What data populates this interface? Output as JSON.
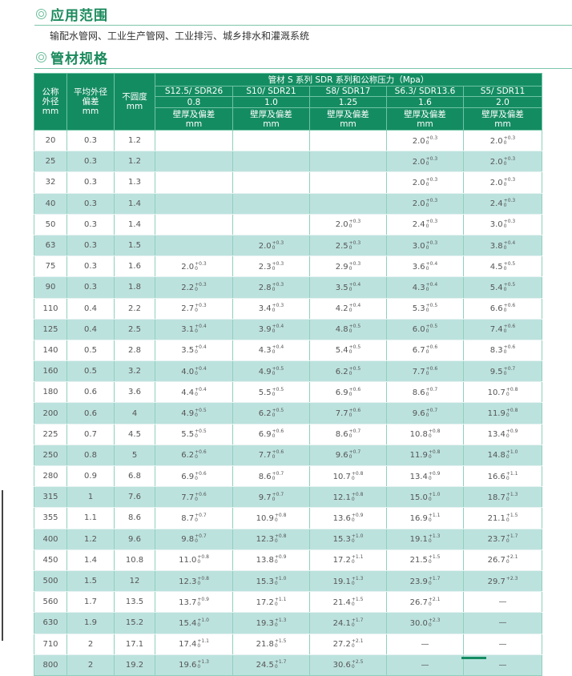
{
  "section1": {
    "icon": "double-circle-icon",
    "title": "应用范围",
    "text": "输配水管网、工业生产管网、工业排污、城乡排水和灌溉系统"
  },
  "section2": {
    "icon": "double-circle-icon",
    "title": "管材规格"
  },
  "colors": {
    "header_bg": "#148c62",
    "stripe": "#bce2de",
    "title": "#1a8a5c"
  },
  "table": {
    "h_od": [
      "公称",
      "外径",
      "mm"
    ],
    "h_dev": [
      "平均外径",
      "偏差",
      "mm"
    ],
    "h_ovality": [
      "不圆度",
      "mm"
    ],
    "h_group": "管材 S 系列 SDR 系列和公称压力（Mpa）",
    "series": [
      {
        "name": "S12.5/ SDR26",
        "pressure": "0.8",
        "sub": "壁厚及偏差",
        "unit": "mm"
      },
      {
        "name": "S10/ SDR21",
        "pressure": "1.0",
        "sub": "壁厚及偏差",
        "unit": "mm"
      },
      {
        "name": "S8/ SDR17",
        "pressure": "1.25",
        "sub": "壁厚及偏差",
        "unit": "mm"
      },
      {
        "name": "S6.3/ SDR13.6",
        "pressure": "1.6",
        "sub": "壁厚及偏差",
        "unit": "mm"
      },
      {
        "name": "S5/ SDR11",
        "pressure": "2.0",
        "sub": "壁厚及偏差",
        "unit": "mm"
      }
    ],
    "rows": [
      {
        "od": "20",
        "dev": "0.3",
        "ov": "1.2",
        "cells": [
          [],
          [],
          [],
          [
            "2.0",
            "+0.3",
            "0"
          ],
          [
            "2.0",
            "+0.3",
            "0"
          ]
        ]
      },
      {
        "od": "25",
        "dev": "0.3",
        "ov": "1.2",
        "cells": [
          [],
          [],
          [],
          [
            "2.0",
            "+0.3",
            "0"
          ],
          [
            "2.0",
            "+0.3",
            "0"
          ]
        ]
      },
      {
        "od": "32",
        "dev": "0.3",
        "ov": "1.3",
        "cells": [
          [],
          [],
          [],
          [
            "2.0",
            "+0.3",
            "0"
          ],
          [
            "2.0",
            "+0.3",
            "0"
          ]
        ]
      },
      {
        "od": "40",
        "dev": "0.3",
        "ov": "1.4",
        "cells": [
          [],
          [],
          [],
          [
            "2.0",
            "+0.3",
            "0"
          ],
          [
            "2.4",
            "+0.3",
            "0"
          ]
        ]
      },
      {
        "od": "50",
        "dev": "0.3",
        "ov": "1.4",
        "cells": [
          [],
          [],
          [
            "2.0",
            "+0.3",
            "0"
          ],
          [
            "2.4",
            "+0.3",
            "0"
          ],
          [
            "3.0",
            "+0.3",
            "0"
          ]
        ]
      },
      {
        "od": "63",
        "dev": "0.3",
        "ov": "1.5",
        "cells": [
          [],
          [
            "2.0",
            "+0.3",
            "0"
          ],
          [
            "2.5",
            "+0.3",
            "0"
          ],
          [
            "3.0",
            "+0.3",
            "0"
          ],
          [
            "3.8",
            "+0.4",
            "0"
          ]
        ]
      },
      {
        "od": "75",
        "dev": "0.3",
        "ov": "1.6",
        "cells": [
          [
            "2.0",
            "+0.3",
            "0"
          ],
          [
            "2.3",
            "+0.3",
            "0"
          ],
          [
            "2.9",
            "+0.3",
            "0"
          ],
          [
            "3.6",
            "+0.4",
            "0"
          ],
          [
            "4.5",
            "+0.5",
            "0"
          ]
        ]
      },
      {
        "od": "90",
        "dev": "0.3",
        "ov": "1.8",
        "cells": [
          [
            "2.2",
            "+0.3",
            "0"
          ],
          [
            "2.8",
            "+0.3",
            "0"
          ],
          [
            "3.5",
            "+0.4",
            "0"
          ],
          [
            "4.3",
            "+0.4",
            "0"
          ],
          [
            "5.4",
            "+0.5",
            "0"
          ]
        ]
      },
      {
        "od": "110",
        "dev": "0.4",
        "ov": "2.2",
        "cells": [
          [
            "2.7",
            "+0.3",
            "0"
          ],
          [
            "3.4",
            "+0.3",
            "0"
          ],
          [
            "4.2",
            "+0.4",
            "0"
          ],
          [
            "5.3",
            "+0.5",
            "0"
          ],
          [
            "6.6",
            "+0.6",
            "0"
          ]
        ]
      },
      {
        "od": "125",
        "dev": "0.4",
        "ov": "2.5",
        "cells": [
          [
            "3.1",
            "+0.4",
            "0"
          ],
          [
            "3.9",
            "+0.4",
            "0"
          ],
          [
            "4.8",
            "+0.5",
            "0"
          ],
          [
            "6.0",
            "+0.5",
            "0"
          ],
          [
            "7.4",
            "+0.6",
            "0"
          ]
        ]
      },
      {
        "od": "140",
        "dev": "0.5",
        "ov": "2.8",
        "cells": [
          [
            "3.5",
            "+0.4",
            "0"
          ],
          [
            "4.3",
            "+0.4",
            "0"
          ],
          [
            "5.4",
            "+0.5",
            "0"
          ],
          [
            "6.7",
            "+0.6",
            "0"
          ],
          [
            "8.3",
            "+0.6",
            "0"
          ]
        ]
      },
      {
        "od": "160",
        "dev": "0.5",
        "ov": "3.2",
        "cells": [
          [
            "4.0",
            "+0.4",
            "0"
          ],
          [
            "4.9",
            "+0.5",
            "0"
          ],
          [
            "6.2",
            "+0.5",
            "0"
          ],
          [
            "7.7",
            "+0.6",
            "0"
          ],
          [
            "9.5",
            "+0.7",
            "0"
          ]
        ]
      },
      {
        "od": "180",
        "dev": "0.6",
        "ov": "3.6",
        "cells": [
          [
            "4.4",
            "+0.4",
            "0"
          ],
          [
            "5.5",
            "+0.5",
            "0"
          ],
          [
            "6.9",
            "+0.6",
            "0"
          ],
          [
            "8.6",
            "+0.7",
            "0"
          ],
          [
            "10.7",
            "+0.8",
            "0"
          ]
        ]
      },
      {
        "od": "200",
        "dev": "0.6",
        "ov": "4",
        "cells": [
          [
            "4.9",
            "+0.5",
            "0"
          ],
          [
            "6.2",
            "+0.5",
            "0"
          ],
          [
            "7.7",
            "+0.6",
            "0"
          ],
          [
            "9.6",
            "+0.7",
            "0"
          ],
          [
            "11.9",
            "+0.8",
            "0"
          ]
        ]
      },
      {
        "od": "225",
        "dev": "0.7",
        "ov": "4.5",
        "cells": [
          [
            "5.5",
            "+0.5",
            "0"
          ],
          [
            "6.9",
            "+0.6",
            "0"
          ],
          [
            "8.6",
            "+0.7",
            "0"
          ],
          [
            "10.8",
            "+0.8",
            "0"
          ],
          [
            "13.4",
            "+0.9",
            "0"
          ]
        ]
      },
      {
        "od": "250",
        "dev": "0.8",
        "ov": "5",
        "cells": [
          [
            "6.2",
            "+0.6",
            "0"
          ],
          [
            "7.7",
            "+0.6",
            "0"
          ],
          [
            "9.6",
            "+0.7",
            "0"
          ],
          [
            "11.9",
            "+0.8",
            "0"
          ],
          [
            "14.8",
            "+1.0",
            "0"
          ]
        ]
      },
      {
        "od": "280",
        "dev": "0.9",
        "ov": "6.8",
        "cells": [
          [
            "6.9",
            "+0.6",
            "0"
          ],
          [
            "8.6",
            "+0.7",
            "0"
          ],
          [
            "10.7",
            "+0.8",
            "0"
          ],
          [
            "13.4",
            "+0.9",
            "0"
          ],
          [
            "16.6",
            "+1.1",
            "0"
          ]
        ]
      },
      {
        "od": "315",
        "dev": "1",
        "ov": "7.6",
        "cells": [
          [
            "7.7",
            "+0.6",
            "0"
          ],
          [
            "9.7",
            "+0.7",
            "0"
          ],
          [
            "12.1",
            "+0.8",
            "0"
          ],
          [
            "15.0",
            "+1.0",
            "0"
          ],
          [
            "18.7",
            "+1.3",
            "0"
          ]
        ]
      },
      {
        "od": "355",
        "dev": "1.1",
        "ov": "8.6",
        "cells": [
          [
            "8.7",
            "+0.7",
            "0"
          ],
          [
            "10.9",
            "+0.8",
            "0"
          ],
          [
            "13.6",
            "+0.9",
            "0"
          ],
          [
            "16.9",
            "+1.1",
            "0"
          ],
          [
            "21.1",
            "+1.5",
            "0"
          ]
        ]
      },
      {
        "od": "400",
        "dev": "1.2",
        "ov": "9.6",
        "cells": [
          [
            "9.8",
            "+0.7",
            "0"
          ],
          [
            "12.3",
            "+0.8",
            "0"
          ],
          [
            "15.3",
            "+1.0",
            "0"
          ],
          [
            "19.1",
            "+1.3",
            "0"
          ],
          [
            "23.7",
            "+1.7",
            "0"
          ]
        ]
      },
      {
        "od": "450",
        "dev": "1.4",
        "ov": "10.8",
        "cells": [
          [
            "11.0",
            "+0.8",
            "0"
          ],
          [
            "13.8",
            "+0.9",
            "0"
          ],
          [
            "17.2",
            "+1.1",
            "0"
          ],
          [
            "21.5",
            "+1.5",
            "0"
          ],
          [
            "26.7",
            "+2.1",
            "0"
          ]
        ]
      },
      {
        "od": "500",
        "dev": "1.5",
        "ov": "12",
        "cells": [
          [
            "12.3",
            "+0.8",
            "0"
          ],
          [
            "15.3",
            "+1.0",
            "0"
          ],
          [
            "19.1",
            "+1.3",
            "0"
          ],
          [
            "23.9",
            "+1.7",
            "0"
          ],
          [
            "29.7",
            "+2.3",
            ""
          ]
        ]
      },
      {
        "od": "560",
        "dev": "1.7",
        "ov": "13.5",
        "cells": [
          [
            "13.7",
            "+0.9",
            "0"
          ],
          [
            "17.2",
            "+1.1",
            "0"
          ],
          [
            "21.4",
            "+1.5",
            "0"
          ],
          [
            "26.7",
            "+2.1",
            "0"
          ],
          [
            "—"
          ]
        ]
      },
      {
        "od": "630",
        "dev": "1.9",
        "ov": "15.2",
        "cells": [
          [
            "15.4",
            "+1.0",
            "0"
          ],
          [
            "19.3",
            "+1.3",
            "0"
          ],
          [
            "24.1",
            "+1.7",
            "0"
          ],
          [
            "30.0",
            "+2.3",
            "0"
          ],
          [
            "—"
          ]
        ]
      },
      {
        "od": "710",
        "dev": "2",
        "ov": "17.1",
        "cells": [
          [
            "17.4",
            "+1.1",
            "0"
          ],
          [
            "21.8",
            "+1.5",
            "0"
          ],
          [
            "27.2",
            "+2.1",
            "0"
          ],
          [
            "—"
          ],
          [
            "—"
          ]
        ]
      },
      {
        "od": "800",
        "dev": "2",
        "ov": "19.2",
        "cells": [
          [
            "19.6",
            "+1.3",
            "0"
          ],
          [
            "24.5",
            "+1.7",
            "0"
          ],
          [
            "30.6",
            "+2.5",
            "0"
          ],
          [
            "—"
          ],
          [
            "—"
          ]
        ]
      }
    ]
  }
}
